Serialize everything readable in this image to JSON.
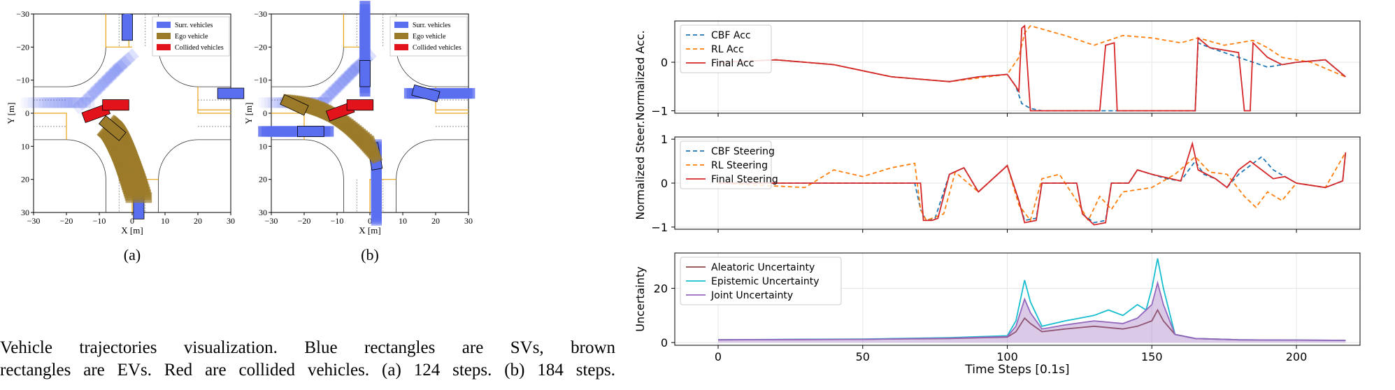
{
  "colors": {
    "surr": "#5a6ef0",
    "ego": "#9b7b2a",
    "collided": "#e3131b",
    "cbf": "#1f77b4",
    "rl": "#ff7f0e",
    "final": "#d62728",
    "aleatoric": "#8c4a4a",
    "epistemic": "#17becf",
    "joint": "#9467bd"
  },
  "traj": {
    "panels": [
      {
        "label": "(a)",
        "xlabel": "X [m]",
        "ylabel": "Y [m]"
      },
      {
        "label": "(b)",
        "xlabel": "X [m]",
        "ylabel": "Y [m]"
      }
    ],
    "xticks": [
      "−30",
      "−20",
      "−10",
      "0",
      "10",
      "20",
      "30"
    ],
    "yticks": [
      "−30",
      "−20",
      "−10",
      "0",
      "10",
      "20",
      "30"
    ],
    "legend": [
      "Surr. vehicles",
      "Ego vehicle",
      "Collided vehicles"
    ]
  },
  "caption": {
    "line1": "Vehicle trajectories visualization. Blue rectangles are SVs, brown",
    "line2": "rectangles are EVs. Red are collided vehicles. (a) 124 steps. (b) 184 steps."
  },
  "chart_data": [
    {
      "type": "line",
      "ylabel": "Normalized Acc.",
      "ylim": [
        -1.05,
        0.85
      ],
      "yticks": [
        -1,
        0
      ],
      "series": [
        {
          "name": "CBF Acc",
          "points": [
            [
              0,
              0
            ],
            [
              20,
              0.05
            ],
            [
              40,
              -0.05
            ],
            [
              60,
              -0.3
            ],
            [
              70,
              -0.35
            ],
            [
              80,
              -0.4
            ],
            [
              90,
              -0.3
            ],
            [
              100,
              -0.25
            ],
            [
              103,
              -0.5
            ],
            [
              105,
              -0.85
            ],
            [
              108,
              -0.95
            ],
            [
              112,
              -1
            ],
            [
              150,
              -1
            ],
            [
              155,
              -1
            ],
            [
              165,
              -1
            ],
            [
              166,
              0.4
            ],
            [
              170,
              0.3
            ],
            [
              180,
              0.1
            ],
            [
              185,
              0
            ],
            [
              190,
              -0.1
            ],
            [
              195,
              -0.05
            ],
            [
              200,
              0
            ],
            [
              210,
              0.05
            ],
            [
              217,
              -0.3
            ]
          ]
        },
        {
          "name": "RL Acc",
          "points": [
            [
              0,
              0
            ],
            [
              20,
              0.05
            ],
            [
              40,
              -0.05
            ],
            [
              60,
              -0.3
            ],
            [
              80,
              -0.4
            ],
            [
              100,
              -0.25
            ],
            [
              104,
              0.1
            ],
            [
              106,
              0.6
            ],
            [
              108,
              0.75
            ],
            [
              120,
              0.55
            ],
            [
              130,
              0.35
            ],
            [
              140,
              0.55
            ],
            [
              150,
              0.5
            ],
            [
              160,
              0.4
            ],
            [
              166,
              0.5
            ],
            [
              175,
              0.35
            ],
            [
              185,
              0.45
            ],
            [
              190,
              0.3
            ],
            [
              195,
              0.1
            ],
            [
              205,
              0
            ],
            [
              217,
              -0.3
            ]
          ]
        },
        {
          "name": "Final Acc",
          "points": [
            [
              0,
              0
            ],
            [
              20,
              0.05
            ],
            [
              40,
              -0.05
            ],
            [
              60,
              -0.3
            ],
            [
              70,
              -0.35
            ],
            [
              80,
              -0.4
            ],
            [
              90,
              -0.3
            ],
            [
              100,
              -0.25
            ],
            [
              103,
              -0.5
            ],
            [
              104,
              -0.6
            ],
            [
              105,
              0.7
            ],
            [
              106,
              0.75
            ],
            [
              108,
              -1
            ],
            [
              132,
              -1
            ],
            [
              134,
              0.35
            ],
            [
              137,
              0.4
            ],
            [
              138,
              -1
            ],
            [
              165,
              -1
            ],
            [
              166,
              0.5
            ],
            [
              170,
              0.3
            ],
            [
              180,
              0.2
            ],
            [
              182,
              -1
            ],
            [
              184,
              -1
            ],
            [
              185,
              0.4
            ],
            [
              190,
              0.1
            ],
            [
              195,
              -0.05
            ],
            [
              200,
              0
            ],
            [
              210,
              0.05
            ],
            [
              217,
              -0.3
            ]
          ]
        }
      ]
    },
    {
      "type": "line",
      "ylabel": "Normalized Steer.",
      "ylim": [
        -1.05,
        1.05
      ],
      "yticks": [
        -1,
        0,
        1
      ],
      "series": [
        {
          "name": "CBF Steering",
          "points": [
            [
              0,
              0
            ],
            [
              68,
              0
            ],
            [
              70,
              -0.6
            ],
            [
              72,
              -0.85
            ],
            [
              75,
              -0.8
            ],
            [
              80,
              0.2
            ],
            [
              85,
              0.35
            ],
            [
              90,
              -0.2
            ],
            [
              100,
              0.4
            ],
            [
              104,
              -0.4
            ],
            [
              106,
              -0.85
            ],
            [
              110,
              -0.8
            ],
            [
              112,
              0
            ],
            [
              124,
              0
            ],
            [
              126,
              -0.7
            ],
            [
              130,
              -0.9
            ],
            [
              134,
              -0.85
            ],
            [
              136,
              0
            ],
            [
              142,
              0
            ],
            [
              145,
              0.3
            ],
            [
              150,
              0.2
            ],
            [
              155,
              0.1
            ],
            [
              160,
              0.05
            ],
            [
              165,
              0.5
            ],
            [
              168,
              0.2
            ],
            [
              172,
              0.1
            ],
            [
              176,
              -0.1
            ],
            [
              180,
              0.2
            ],
            [
              184,
              0.4
            ],
            [
              188,
              0.6
            ],
            [
              192,
              0.3
            ],
            [
              196,
              0.15
            ],
            [
              200,
              0
            ],
            [
              210,
              -0.1
            ],
            [
              216,
              0.05
            ],
            [
              217,
              0.7
            ]
          ]
        },
        {
          "name": "RL Steering",
          "points": [
            [
              0,
              0
            ],
            [
              30,
              -0.1
            ],
            [
              40,
              0.3
            ],
            [
              50,
              0.15
            ],
            [
              60,
              0.35
            ],
            [
              68,
              0.45
            ],
            [
              70,
              -0.6
            ],
            [
              72,
              -0.85
            ],
            [
              78,
              -0.7
            ],
            [
              82,
              0.25
            ],
            [
              90,
              -0.2
            ],
            [
              100,
              0.4
            ],
            [
              104,
              -0.5
            ],
            [
              108,
              -0.85
            ],
            [
              112,
              0.1
            ],
            [
              118,
              0.2
            ],
            [
              124,
              -0.4
            ],
            [
              128,
              -0.85
            ],
            [
              132,
              -0.3
            ],
            [
              136,
              -0.6
            ],
            [
              140,
              -0.2
            ],
            [
              150,
              -0.1
            ],
            [
              158,
              0.2
            ],
            [
              165,
              0.6
            ],
            [
              170,
              0.25
            ],
            [
              176,
              0.2
            ],
            [
              182,
              -0.3
            ],
            [
              186,
              -0.55
            ],
            [
              190,
              -0.2
            ],
            [
              195,
              -0.4
            ],
            [
              200,
              0
            ],
            [
              210,
              -0.1
            ],
            [
              217,
              0.7
            ]
          ]
        },
        {
          "name": "Final Steering",
          "points": [
            [
              0,
              0
            ],
            [
              70,
              0
            ],
            [
              71,
              -0.85
            ],
            [
              74,
              -0.85
            ],
            [
              76,
              -0.8
            ],
            [
              80,
              0.2
            ],
            [
              85,
              0.35
            ],
            [
              90,
              -0.2
            ],
            [
              100,
              0.4
            ],
            [
              104,
              -0.4
            ],
            [
              106,
              -0.9
            ],
            [
              110,
              -0.85
            ],
            [
              112,
              0
            ],
            [
              124,
              0
            ],
            [
              126,
              -0.7
            ],
            [
              130,
              -0.95
            ],
            [
              134,
              -0.9
            ],
            [
              136,
              0
            ],
            [
              142,
              0
            ],
            [
              145,
              0.3
            ],
            [
              150,
              0.2
            ],
            [
              160,
              0.05
            ],
            [
              164,
              0.9
            ],
            [
              166,
              0.3
            ],
            [
              172,
              0.1
            ],
            [
              176,
              -0.1
            ],
            [
              180,
              0.3
            ],
            [
              184,
              0.5
            ],
            [
              188,
              0.3
            ],
            [
              192,
              0.1
            ],
            [
              196,
              0.15
            ],
            [
              200,
              0
            ],
            [
              210,
              -0.1
            ],
            [
              216,
              0.05
            ],
            [
              217,
              0.7
            ]
          ]
        }
      ]
    },
    {
      "type": "area",
      "ylabel": "Uncertainty",
      "ylim": [
        -1,
        33
      ],
      "yticks": [
        0,
        20
      ],
      "series": [
        {
          "name": "Aleatoric Uncertainty",
          "points": [
            [
              0,
              1
            ],
            [
              50,
              1.2
            ],
            [
              80,
              1.5
            ],
            [
              100,
              2
            ],
            [
              103,
              4
            ],
            [
              106,
              9
            ],
            [
              108,
              7
            ],
            [
              112,
              4
            ],
            [
              120,
              5
            ],
            [
              130,
              6
            ],
            [
              140,
              5
            ],
            [
              145,
              6
            ],
            [
              150,
              8
            ],
            [
              152,
              12
            ],
            [
              154,
              8
            ],
            [
              158,
              3
            ],
            [
              165,
              1.5
            ],
            [
              180,
              1
            ],
            [
              217,
              0.8
            ]
          ]
        },
        {
          "name": "Epistemic Uncertainty",
          "points": [
            [
              0,
              1
            ],
            [
              50,
              1.3
            ],
            [
              80,
              1.8
            ],
            [
              100,
              2.5
            ],
            [
              103,
              8
            ],
            [
              106,
              23
            ],
            [
              108,
              15
            ],
            [
              112,
              6
            ],
            [
              120,
              8
            ],
            [
              125,
              9
            ],
            [
              130,
              10
            ],
            [
              135,
              12
            ],
            [
              140,
              10
            ],
            [
              145,
              14
            ],
            [
              148,
              12
            ],
            [
              150,
              20
            ],
            [
              152,
              31
            ],
            [
              154,
              20
            ],
            [
              158,
              3
            ],
            [
              165,
              1.5
            ],
            [
              180,
              1
            ],
            [
              217,
              0.8
            ]
          ]
        },
        {
          "name": "Joint Uncertainty",
          "points": [
            [
              0,
              1
            ],
            [
              50,
              1.2
            ],
            [
              80,
              1.6
            ],
            [
              100,
              2.2
            ],
            [
              103,
              6
            ],
            [
              106,
              16
            ],
            [
              108,
              11
            ],
            [
              112,
              5
            ],
            [
              120,
              6.5
            ],
            [
              130,
              8
            ],
            [
              140,
              7
            ],
            [
              145,
              9
            ],
            [
              150,
              14
            ],
            [
              152,
              22
            ],
            [
              154,
              14
            ],
            [
              158,
              3
            ],
            [
              165,
              1.5
            ],
            [
              180,
              1
            ],
            [
              217,
              0.8
            ]
          ]
        }
      ],
      "xlabel": "Time Steps [0.1s]",
      "xlim": [
        -15,
        222
      ],
      "xticks": [
        0,
        50,
        100,
        150,
        200
      ]
    }
  ],
  "shared_ylabel": "Normalized Steer.Normalized Acc."
}
